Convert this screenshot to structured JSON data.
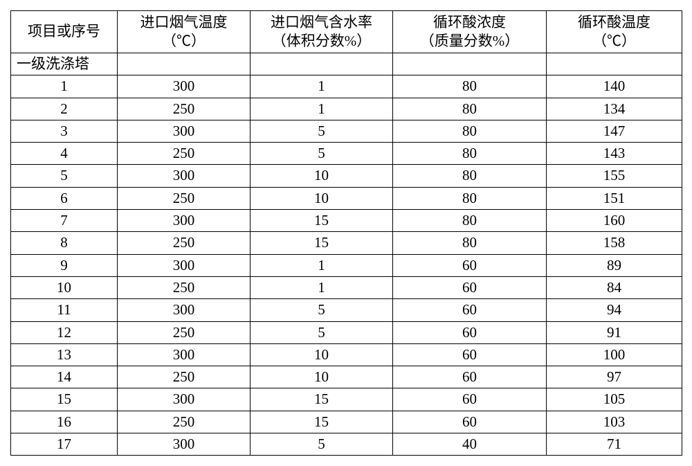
{
  "table": {
    "columns": [
      {
        "line1": "项目或序号",
        "line2": ""
      },
      {
        "line1": "进口烟气温度",
        "line2": "（℃）"
      },
      {
        "line1": "进口烟气含水率",
        "line2": "（体积分数%）"
      },
      {
        "line1": "循环酸浓度",
        "line2": "（质量分数%）"
      },
      {
        "line1": "循环酸温度",
        "line2": "（℃）"
      }
    ],
    "section_label": "一级洗涤塔",
    "rows": [
      [
        "1",
        "300",
        "1",
        "80",
        "140"
      ],
      [
        "2",
        "250",
        "1",
        "80",
        "134"
      ],
      [
        "3",
        "300",
        "5",
        "80",
        "147"
      ],
      [
        "4",
        "250",
        "5",
        "80",
        "143"
      ],
      [
        "5",
        "300",
        "10",
        "80",
        "155"
      ],
      [
        "6",
        "250",
        "10",
        "80",
        "151"
      ],
      [
        "7",
        "300",
        "15",
        "80",
        "160"
      ],
      [
        "8",
        "250",
        "15",
        "80",
        "158"
      ],
      [
        "9",
        "300",
        "1",
        "60",
        "89"
      ],
      [
        "10",
        "250",
        "1",
        "60",
        "84"
      ],
      [
        "11",
        "300",
        "5",
        "60",
        "94"
      ],
      [
        "12",
        "250",
        "5",
        "60",
        "91"
      ],
      [
        "13",
        "300",
        "10",
        "60",
        "100"
      ],
      [
        "14",
        "250",
        "10",
        "60",
        "97"
      ],
      [
        "15",
        "300",
        "15",
        "60",
        "105"
      ],
      [
        "16",
        "250",
        "15",
        "60",
        "103"
      ],
      [
        "17",
        "300",
        "5",
        "40",
        "71"
      ]
    ]
  }
}
